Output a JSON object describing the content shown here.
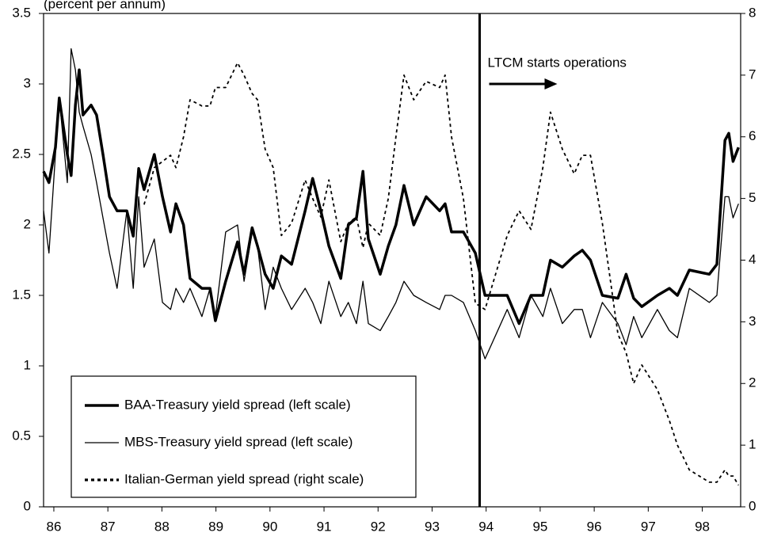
{
  "chart_data": {
    "type": "line",
    "y_label": "(percent per annum)",
    "annotation": "LTCM starts operations",
    "event_x": 93.88,
    "xlim": [
      85.81,
      98.71
    ],
    "xticks": [
      86,
      87,
      88,
      89,
      90,
      91,
      92,
      93,
      94,
      95,
      96,
      97,
      98
    ],
    "ylim": [
      0,
      3.5
    ],
    "yticks": [
      0,
      0.5,
      1,
      1.5,
      2,
      2.5,
      3,
      3.5
    ],
    "y2lim": [
      0,
      8
    ],
    "y2ticks": [
      0,
      1,
      2,
      3,
      4,
      5,
      6,
      7,
      8
    ],
    "x": [
      85.81,
      85.91,
      86.03,
      86.1,
      86.25,
      86.32,
      86.4,
      86.47,
      86.54,
      86.69,
      86.79,
      86.91,
      87.03,
      87.17,
      87.35,
      87.47,
      87.57,
      87.67,
      87.86,
      88.01,
      88.16,
      88.26,
      88.4,
      88.52,
      88.74,
      88.89,
      88.99,
      89.18,
      89.4,
      89.52,
      89.67,
      89.77,
      89.91,
      90.06,
      90.21,
      90.4,
      90.65,
      90.79,
      90.94,
      91.09,
      91.31,
      91.45,
      91.6,
      91.72,
      91.82,
      92.04,
      92.19,
      92.33,
      92.48,
      92.66,
      92.89,
      93.14,
      93.24,
      93.36,
      93.58,
      93.8,
      93.98,
      94.39,
      94.61,
      94.83,
      95.05,
      95.19,
      95.41,
      95.63,
      95.78,
      95.93,
      96.15,
      96.44,
      96.59,
      96.73,
      96.88,
      97.17,
      97.39,
      97.54,
      97.76,
      98.13,
      98.27,
      98.42,
      98.49,
      98.57,
      98.67
    ],
    "series": [
      {
        "name": "BAA-Treasury yield spread (left scale)",
        "color": "#000000",
        "width": 3.5,
        "dash": "none",
        "values": [
          2.38,
          2.3,
          2.55,
          2.9,
          2.5,
          2.35,
          2.85,
          3.1,
          2.78,
          2.85,
          2.78,
          2.5,
          2.2,
          2.1,
          2.1,
          1.92,
          2.4,
          2.25,
          2.5,
          2.2,
          1.95,
          2.15,
          2.0,
          1.62,
          1.55,
          1.55,
          1.32,
          1.6,
          1.88,
          1.65,
          1.98,
          1.85,
          1.65,
          1.55,
          1.78,
          1.72,
          2.1,
          2.33,
          2.1,
          1.85,
          1.62,
          2.0,
          2.05,
          2.38,
          1.9,
          1.65,
          1.85,
          2.0,
          2.28,
          2.0,
          2.2,
          2.1,
          2.15,
          1.95,
          1.95,
          1.8,
          1.5,
          1.5,
          1.3,
          1.5,
          1.5,
          1.75,
          1.7,
          1.78,
          1.82,
          1.75,
          1.5,
          1.48,
          1.65,
          1.48,
          1.42,
          1.5,
          1.55,
          1.5,
          1.68,
          1.65,
          1.72,
          2.6,
          2.65,
          2.45,
          2.55
        ]
      },
      {
        "name": "MBS-Treasury yield spread (left scale)",
        "color": "#000000",
        "width": 1.3,
        "dash": "none",
        "values": [
          2.1,
          1.8,
          2.5,
          2.9,
          2.3,
          3.25,
          3.1,
          2.8,
          2.7,
          2.5,
          2.3,
          2.05,
          1.8,
          1.55,
          2.1,
          1.55,
          2.2,
          1.7,
          1.9,
          1.45,
          1.4,
          1.55,
          1.45,
          1.55,
          1.35,
          1.55,
          1.35,
          1.95,
          2.0,
          1.6,
          1.95,
          1.85,
          1.4,
          1.7,
          1.55,
          1.4,
          1.55,
          1.45,
          1.3,
          1.6,
          1.35,
          1.45,
          1.3,
          1.6,
          1.3,
          1.25,
          1.35,
          1.45,
          1.6,
          1.5,
          1.45,
          1.4,
          1.5,
          1.5,
          1.45,
          1.25,
          1.05,
          1.4,
          1.2,
          1.5,
          1.35,
          1.55,
          1.3,
          1.4,
          1.4,
          1.2,
          1.45,
          1.3,
          1.15,
          1.35,
          1.2,
          1.4,
          1.25,
          1.2,
          1.55,
          1.45,
          1.5,
          2.2,
          2.2,
          2.05,
          2.15
        ]
      },
      {
        "name": "Italian-German yield spread (right scale)",
        "color": "#000000",
        "width": 1.8,
        "dash": "4,4",
        "axis": "y2",
        "values": [
          null,
          null,
          null,
          null,
          null,
          null,
          null,
          null,
          null,
          null,
          null,
          null,
          null,
          null,
          null,
          null,
          null,
          4.9,
          5.5,
          5.6,
          5.7,
          5.5,
          6.0,
          6.6,
          6.5,
          6.5,
          6.8,
          6.8,
          7.2,
          7.0,
          6.7,
          6.6,
          5.8,
          5.5,
          4.4,
          4.6,
          5.3,
          5.0,
          4.7,
          5.3,
          4.3,
          4.6,
          4.7,
          4.2,
          4.6,
          4.4,
          5.0,
          6.0,
          7.0,
          6.6,
          6.9,
          6.8,
          7.0,
          6.0,
          5.0,
          3.3,
          3.2,
          4.4,
          4.8,
          4.5,
          5.5,
          6.4,
          5.8,
          5.4,
          5.7,
          5.7,
          4.6,
          2.8,
          2.5,
          2.0,
          2.3,
          1.9,
          1.4,
          1.0,
          0.6,
          0.4,
          0.4,
          0.6,
          0.5,
          0.5,
          0.35
        ]
      }
    ]
  }
}
